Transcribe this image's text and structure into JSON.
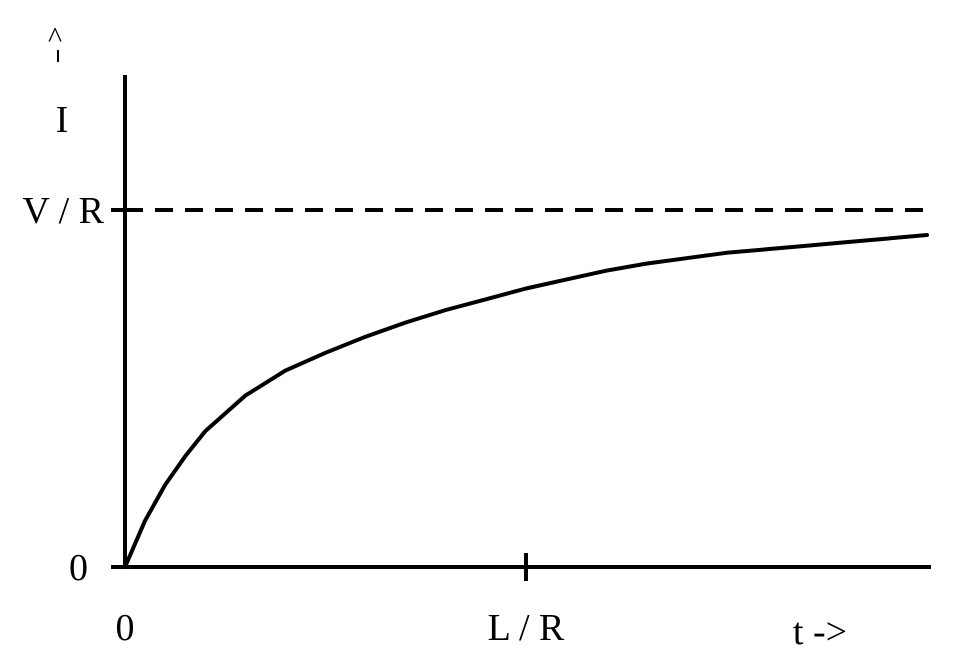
{
  "chart_data": {
    "type": "line",
    "y_axis_label": "I",
    "y_axis_arrow": "^",
    "x_axis_label": "t ->",
    "x_ticks": [
      {
        "value": 0,
        "label": "0"
      },
      {
        "value": 1,
        "label": "L / R"
      }
    ],
    "y_ticks": [
      {
        "value": 0,
        "label": "0"
      },
      {
        "value": 1,
        "label": "V / R"
      }
    ],
    "asymptote": {
      "y": 1,
      "label": "V / R",
      "style": "dashed"
    },
    "xlim": [
      0,
      2.0
    ],
    "ylim": [
      0,
      1.3
    ],
    "grid": false,
    "series": [
      {
        "x": [
          0,
          0.05,
          0.1,
          0.15,
          0.2,
          0.3,
          0.4,
          0.5,
          0.6,
          0.7,
          0.8,
          0.9,
          1.0,
          1.1,
          1.2,
          1.3,
          1.4,
          1.5,
          1.6,
          1.7,
          1.8,
          1.9,
          2.0
        ],
        "y": [
          0,
          0.13,
          0.23,
          0.31,
          0.38,
          0.48,
          0.55,
          0.6,
          0.645,
          0.685,
          0.72,
          0.75,
          0.78,
          0.805,
          0.83,
          0.85,
          0.865,
          0.88,
          0.89,
          0.9,
          0.91,
          0.92,
          0.93
        ]
      }
    ]
  }
}
